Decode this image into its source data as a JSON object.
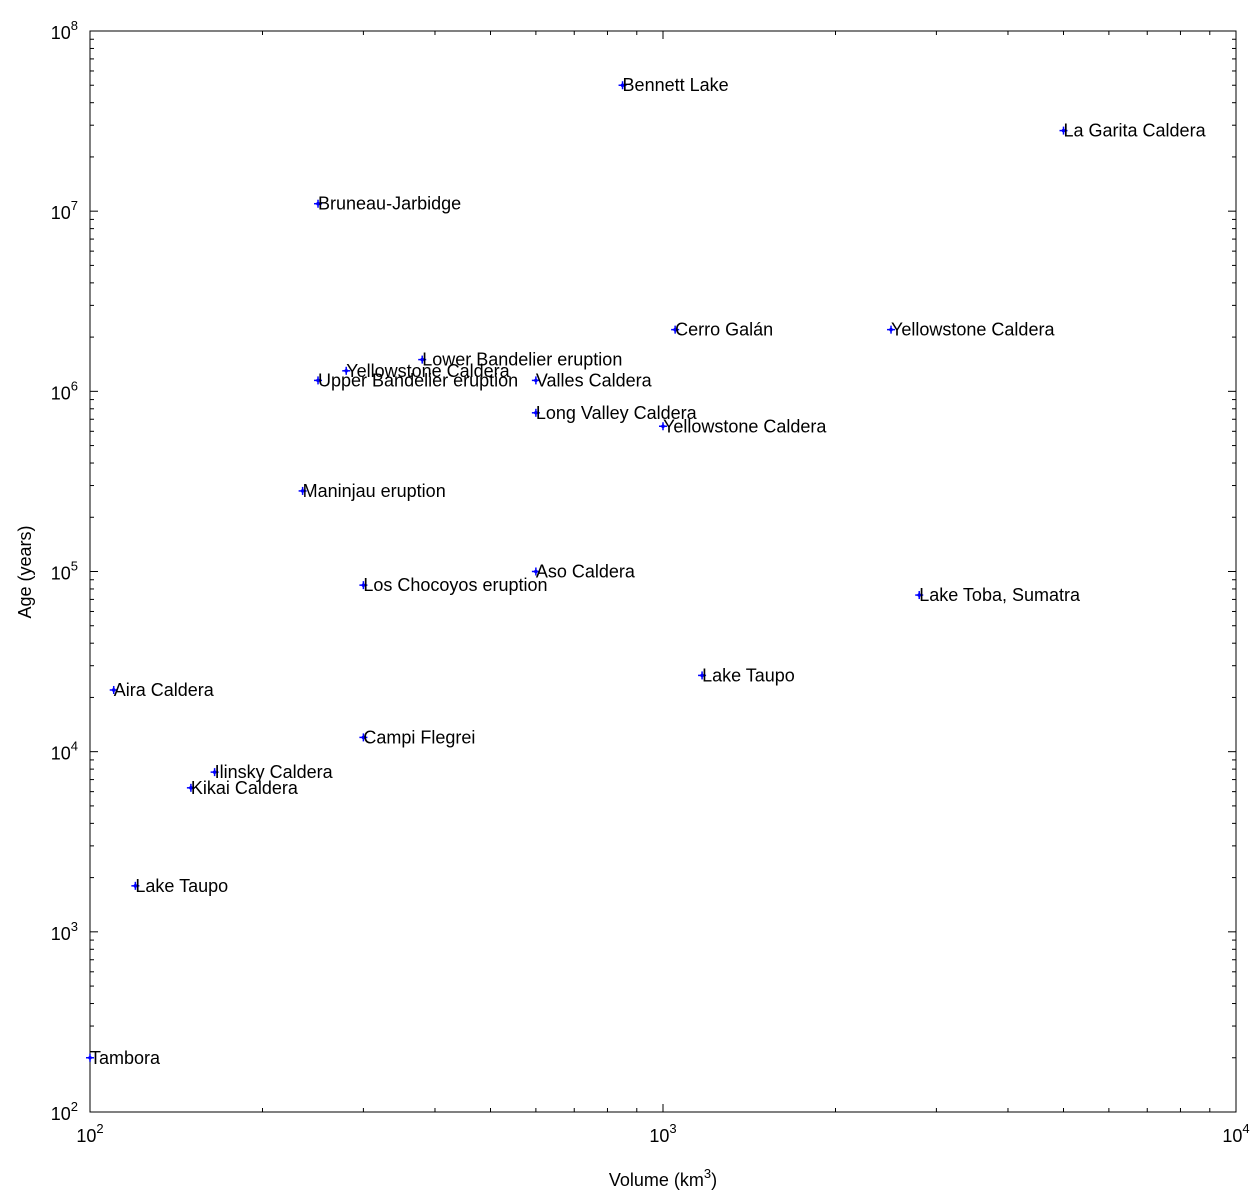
{
  "chart_data": {
    "type": "scatter",
    "title": "",
    "xlabel": "Volume (km",
    "xlabel_sup": "3",
    "xlabel_close": ")",
    "ylabel": "Age (years)",
    "x_scale": "log",
    "y_scale": "log",
    "xlim": [
      100,
      10000
    ],
    "ylim": [
      100,
      100000000
    ],
    "grid": false,
    "marker_color": "#0000ff",
    "x_ticks": [
      {
        "value": 100,
        "base": "10",
        "exp": "2"
      },
      {
        "value": 1000,
        "base": "10",
        "exp": "3"
      },
      {
        "value": 10000,
        "base": "10",
        "exp": "4"
      }
    ],
    "y_ticks": [
      {
        "value": 100,
        "base": "10",
        "exp": "2"
      },
      {
        "value": 1000,
        "base": "10",
        "exp": "3"
      },
      {
        "value": 10000,
        "base": "10",
        "exp": "4"
      },
      {
        "value": 100000,
        "base": "10",
        "exp": "5"
      },
      {
        "value": 1000000,
        "base": "10",
        "exp": "6"
      },
      {
        "value": 10000000,
        "base": "10",
        "exp": "7"
      },
      {
        "value": 100000000,
        "base": "10",
        "exp": "8"
      }
    ],
    "points": [
      {
        "label": "Bennett Lake",
        "x": 850,
        "y": 50000000
      },
      {
        "label": "La Garita Caldera",
        "x": 5000,
        "y": 28000000
      },
      {
        "label": "Bruneau-Jarbidge",
        "x": 250,
        "y": 11000000
      },
      {
        "label": "Cerro Galán",
        "x": 1050,
        "y": 2200000
      },
      {
        "label": "Yellowstone Caldera",
        "x": 2500,
        "y": 2200000
      },
      {
        "label": "Lower Bandelier eruption",
        "x": 380,
        "y": 1500000
      },
      {
        "label": "Yellowstone Caldera",
        "x": 280,
        "y": 1300000
      },
      {
        "label": "Upper Bandelier eruption",
        "x": 250,
        "y": 1150000
      },
      {
        "label": "Valles Caldera",
        "x": 600,
        "y": 1150000
      },
      {
        "label": "Long Valley Caldera",
        "x": 600,
        "y": 760000
      },
      {
        "label": "Yellowstone Caldera",
        "x": 1000,
        "y": 640000
      },
      {
        "label": "Maninjau eruption",
        "x": 235,
        "y": 280000
      },
      {
        "label": "Aso Caldera",
        "x": 600,
        "y": 100000
      },
      {
        "label": "Los Chocoyos eruption",
        "x": 300,
        "y": 84000
      },
      {
        "label": "Lake Toba, Sumatra",
        "x": 2800,
        "y": 74000
      },
      {
        "label": "Lake Taupo",
        "x": 1170,
        "y": 26500
      },
      {
        "label": "Aira Caldera",
        "x": 110,
        "y": 22000
      },
      {
        "label": "Campi Flegrei",
        "x": 300,
        "y": 12000
      },
      {
        "label": "Ilinsky Caldera",
        "x": 165,
        "y": 7700
      },
      {
        "label": "Kikai Caldera",
        "x": 150,
        "y": 6300
      },
      {
        "label": "Lake Taupo",
        "x": 120,
        "y": 1800
      },
      {
        "label": "Tambora",
        "x": 100,
        "y": 200
      }
    ]
  }
}
